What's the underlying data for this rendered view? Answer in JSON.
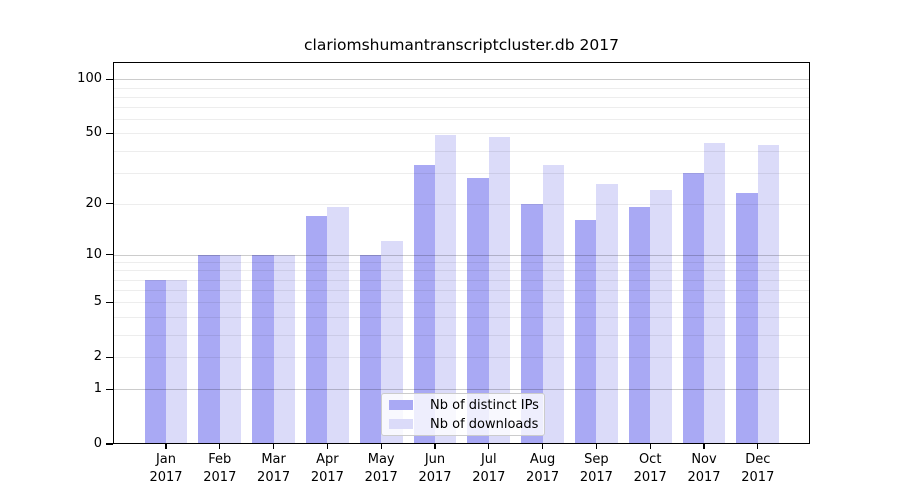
{
  "chart_data": {
    "type": "bar",
    "title": "clariomshumantranscriptcluster.db 2017",
    "categories": [
      "Jan 2017",
      "Feb 2017",
      "Mar 2017",
      "Apr 2017",
      "May 2017",
      "Jun 2017",
      "Jul 2017",
      "Aug 2017",
      "Sep 2017",
      "Oct 2017",
      "Nov 2017",
      "Dec 2017"
    ],
    "month_labels": [
      "Jan",
      "Feb",
      "Mar",
      "Apr",
      "May",
      "Jun",
      "Jul",
      "Aug",
      "Sep",
      "Oct",
      "Nov",
      "Dec"
    ],
    "year_label": "2017",
    "series": [
      {
        "name": "Nb of distinct IPs",
        "color": "#a9a9f4",
        "values": [
          7,
          10,
          10,
          17,
          10,
          33,
          28,
          20,
          16,
          19,
          30,
          23
        ]
      },
      {
        "name": "Nb of downloads",
        "color": "#dbdbf9",
        "values": [
          7,
          10,
          10,
          19,
          12,
          49,
          48,
          33,
          26,
          24,
          44,
          43
        ]
      }
    ],
    "xlabel": "",
    "ylabel": "",
    "y_scale": "log1p",
    "ylim": [
      0,
      124
    ],
    "y_ticks": [
      100,
      50,
      20,
      10,
      5,
      2,
      1,
      0
    ],
    "grid": true,
    "grid_major_values": [
      1,
      10,
      100
    ],
    "grid_minor_values": [
      2,
      3,
      4,
      5,
      6,
      7,
      8,
      9,
      20,
      30,
      40,
      50,
      60,
      70,
      80,
      90
    ],
    "legend_position": "bottom-center"
  },
  "colors": {
    "background": "#ffffff",
    "axis": "#000000",
    "grid_major": "rgba(0,0,0,0.20)",
    "grid_minor": "rgba(0,0,0,0.07)",
    "legend_border": "#cccccc"
  }
}
